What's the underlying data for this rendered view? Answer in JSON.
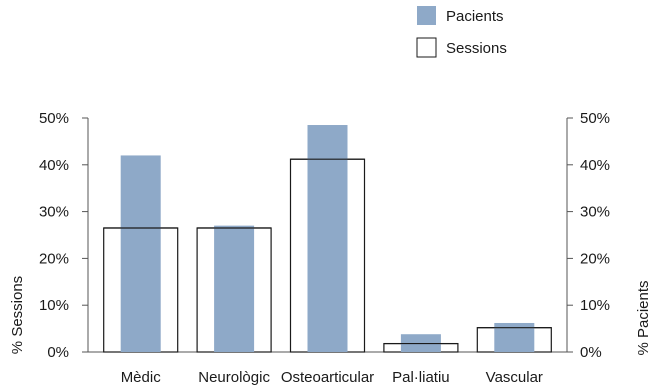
{
  "chart_data": {
    "type": "bar",
    "categories": [
      "Mèdic",
      "Neurològic",
      "Osteoarticular",
      "Pal·liatiu",
      "Vascular"
    ],
    "series": [
      {
        "name": "Sessions",
        "values": [
          26.5,
          26.5,
          41.2,
          1.8,
          5.2
        ],
        "color": "#ffffff",
        "stroke": "#1a1a1a",
        "axis": "left"
      },
      {
        "name": "Pacients",
        "values": [
          42.0,
          27.0,
          48.5,
          3.8,
          6.2
        ],
        "color": "#8ea9c8",
        "axis": "right"
      }
    ],
    "ylabel_left": "% Sessions",
    "ylabel_right": "% Pacients",
    "ylim": [
      0,
      50
    ],
    "yticks": [
      "0%",
      "10%",
      "20%",
      "30%",
      "40%",
      "50%"
    ],
    "legend": {
      "position": "top-right",
      "order": [
        "Pacients",
        "Sessions"
      ]
    },
    "grid": false
  }
}
